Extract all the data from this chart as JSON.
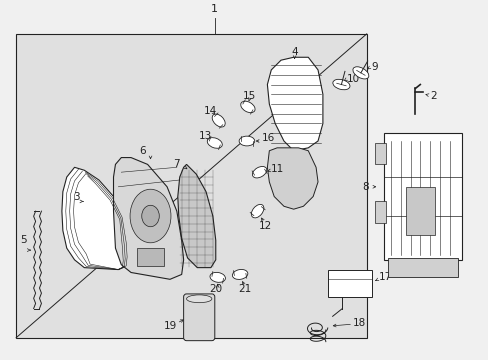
{
  "bg_color": "#c8c8c8",
  "outer_bg": "#f0f0f0",
  "box_bg": "#d4d4d4",
  "line_color": "#222222",
  "font_size": 7.5,
  "label_color": "#111111"
}
